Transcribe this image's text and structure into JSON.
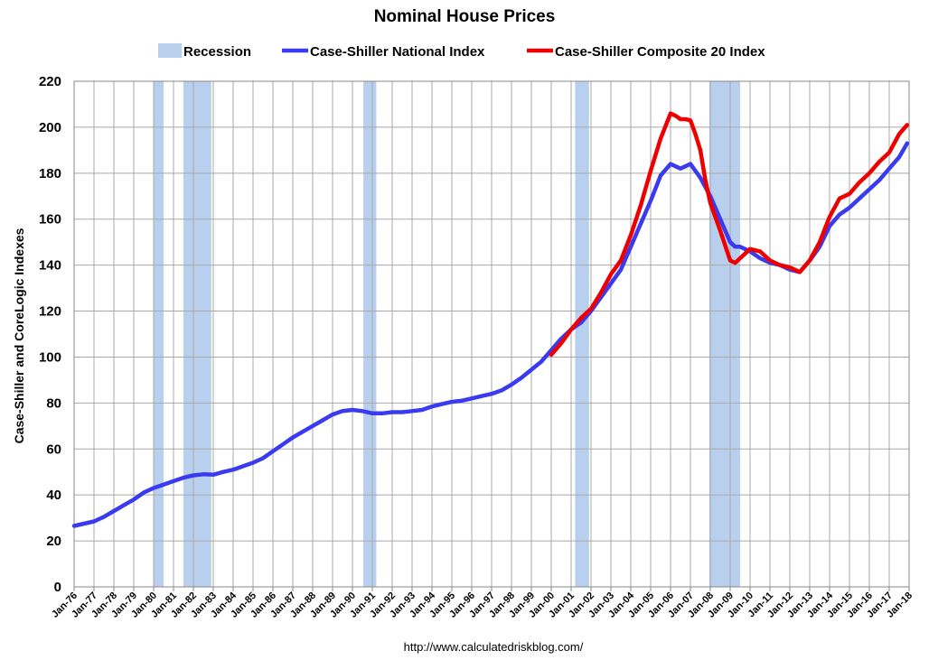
{
  "chart_data": {
    "type": "line",
    "title": "Nominal House Prices",
    "ylabel": "Case-Shiller and CoreLogic Indexes",
    "xlabel": "",
    "source": "http://www.calculatedriskblog.com/",
    "ylim": [
      0,
      220
    ],
    "yticks": [
      0,
      20,
      40,
      60,
      80,
      100,
      120,
      140,
      160,
      180,
      200,
      220
    ],
    "xlim": [
      1976,
      2018
    ],
    "xtick_labels": [
      "Jan-76",
      "Jan-77",
      "Jan-78",
      "Jan-79",
      "Jan-80",
      "Jan-81",
      "Jan-82",
      "Jan-83",
      "Jan-84",
      "Jan-85",
      "Jan-86",
      "Jan-87",
      "Jan-88",
      "Jan-89",
      "Jan-90",
      "Jan-91",
      "Jan-92",
      "Jan-93",
      "Jan-94",
      "Jan-95",
      "Jan-96",
      "Jan-97",
      "Jan-98",
      "Jan-99",
      "Jan-00",
      "Jan-01",
      "Jan-02",
      "Jan-03",
      "Jan-04",
      "Jan-05",
      "Jan-06",
      "Jan-07",
      "Jan-08",
      "Jan-09",
      "Jan-10",
      "Jan-11",
      "Jan-12",
      "Jan-13",
      "Jan-14",
      "Jan-15",
      "Jan-16",
      "Jan-17",
      "Jan-18"
    ],
    "grid": true,
    "legend_position": "top-center",
    "recessions": [
      {
        "start": 1980.0,
        "end": 1980.5
      },
      {
        "start": 1981.5,
        "end": 1982.9
      },
      {
        "start": 1990.55,
        "end": 1991.2
      },
      {
        "start": 2001.2,
        "end": 2001.9
      },
      {
        "start": 2007.95,
        "end": 2009.5
      }
    ],
    "series": [
      {
        "name": "Case-Shiller National Index",
        "color": "#3a3af0",
        "x": [
          1976.0,
          1976.5,
          1977.0,
          1977.5,
          1978.0,
          1978.5,
          1979.0,
          1979.5,
          1980.0,
          1980.5,
          1981.0,
          1981.5,
          1982.0,
          1982.5,
          1983.0,
          1983.5,
          1984.0,
          1984.5,
          1985.0,
          1985.5,
          1986.0,
          1986.5,
          1987.0,
          1987.5,
          1988.0,
          1988.5,
          1989.0,
          1989.5,
          1990.0,
          1990.5,
          1991.0,
          1991.5,
          1992.0,
          1992.5,
          1993.0,
          1993.5,
          1994.0,
          1994.5,
          1995.0,
          1995.5,
          1996.0,
          1996.5,
          1997.0,
          1997.5,
          1998.0,
          1998.5,
          1999.0,
          1999.5,
          2000.0,
          2000.5,
          2001.0,
          2001.5,
          2002.0,
          2002.5,
          2003.0,
          2003.5,
          2004.0,
          2004.5,
          2005.0,
          2005.5,
          2006.0,
          2006.25,
          2006.5,
          2006.75,
          2007.0,
          2007.5,
          2008.0,
          2008.5,
          2009.0,
          2009.25,
          2009.5,
          2010.0,
          2010.5,
          2011.0,
          2011.5,
          2012.0,
          2012.5,
          2013.0,
          2013.5,
          2014.0,
          2014.5,
          2015.0,
          2015.5,
          2016.0,
          2016.5,
          2017.0,
          2017.5,
          2017.9
        ],
        "values": [
          26.5,
          27.5,
          28.5,
          30.5,
          33,
          35.5,
          38,
          41,
          43,
          44.5,
          46,
          47.5,
          48.5,
          49,
          48.8,
          50,
          51,
          52.5,
          54,
          56,
          59,
          62,
          65,
          67.5,
          70,
          72.5,
          75,
          76.5,
          77,
          76.5,
          75.5,
          75.5,
          76,
          76,
          76.5,
          77,
          78.5,
          79.5,
          80.5,
          81,
          82,
          83,
          84,
          85.5,
          88,
          91,
          94.5,
          98,
          103,
          108,
          112,
          115,
          120,
          126,
          132,
          138,
          148,
          158,
          168,
          179,
          184,
          183,
          182,
          183,
          184,
          178,
          170,
          160,
          150,
          148,
          148,
          146,
          143,
          141,
          140,
          138,
          137,
          142,
          148,
          157,
          162,
          165,
          169,
          173,
          177,
          182,
          187,
          193
        ]
      },
      {
        "name": "Case-Shiller Composite 20 Index",
        "color": "#ee0000",
        "x": [
          2000.0,
          2000.5,
          2001.0,
          2001.5,
          2002.0,
          2002.5,
          2003.0,
          2003.5,
          2004.0,
          2004.5,
          2005.0,
          2005.5,
          2006.0,
          2006.25,
          2006.5,
          2006.75,
          2007.0,
          2007.25,
          2007.5,
          2007.75,
          2008.0,
          2008.5,
          2009.0,
          2009.25,
          2009.5,
          2010.0,
          2010.5,
          2011.0,
          2011.5,
          2012.0,
          2012.5,
          2013.0,
          2013.5,
          2014.0,
          2014.5,
          2015.0,
          2015.5,
          2016.0,
          2016.5,
          2017.0,
          2017.5,
          2017.9
        ],
        "values": [
          101,
          106,
          112,
          117,
          121,
          128,
          136,
          142,
          153,
          166,
          181,
          195,
          206,
          205,
          203.5,
          203.5,
          203,
          197,
          190,
          177,
          167,
          155,
          142,
          141,
          143,
          147,
          146,
          142,
          140,
          139,
          137,
          142,
          150,
          161,
          169,
          171,
          176,
          180,
          185,
          189,
          197,
          201
        ]
      }
    ],
    "legend": [
      {
        "label": "Recession",
        "color": "#b8d0ee",
        "kind": "box"
      },
      {
        "label": "Case-Shiller National Index",
        "color": "#3a3af0",
        "kind": "line"
      },
      {
        "label": "Case-Shiller Composite 20 Index",
        "color": "#ee0000",
        "kind": "line"
      }
    ]
  }
}
